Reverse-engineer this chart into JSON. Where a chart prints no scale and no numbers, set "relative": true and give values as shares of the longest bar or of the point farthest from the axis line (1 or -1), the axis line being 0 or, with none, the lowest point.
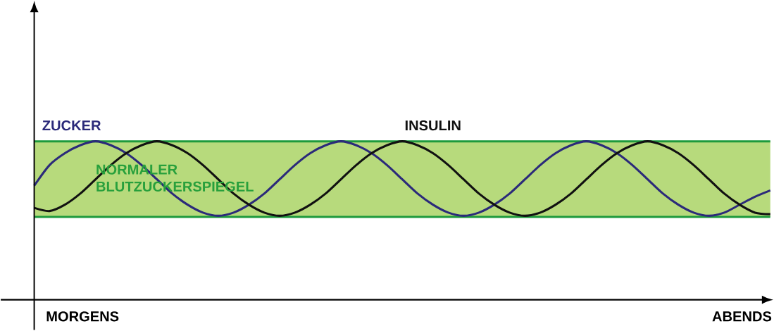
{
  "chart_data": {
    "type": "line",
    "relative": true,
    "categories": [
      null,
      null,
      null,
      null,
      null,
      null,
      null,
      null,
      null,
      null,
      null,
      null,
      null,
      null,
      null,
      null,
      null,
      null,
      null,
      null,
      null,
      null,
      null,
      null,
      null,
      null,
      null,
      null,
      null,
      null,
      null,
      null,
      null,
      null,
      null,
      null,
      null,
      null,
      null,
      null,
      null,
      null,
      null,
      null,
      null,
      null,
      null,
      null,
      null
    ],
    "series": [
      {
        "name": "ZUCKER",
        "color": "#2b2a7a",
        "values": [
          0.72,
          0.85,
          0.925,
          0.975,
          1,
          0.975,
          0.925,
          0.85,
          0.76,
          0.67,
          0.6,
          0.55,
          0.53,
          0.55,
          0.6,
          0.67,
          0.76,
          0.85,
          0.925,
          0.975,
          1,
          0.975,
          0.925,
          0.85,
          0.76,
          0.67,
          0.6,
          0.55,
          0.53,
          0.55,
          0.6,
          0.67,
          0.76,
          0.85,
          0.925,
          0.975,
          1,
          0.975,
          0.925,
          0.85,
          0.76,
          0.67,
          0.6,
          0.55,
          0.53,
          0.55,
          0.6,
          0.65,
          0.69
        ]
      },
      {
        "name": "INSULIN",
        "color": "#111111",
        "values": [
          0.58,
          0.56,
          0.6,
          0.67,
          0.76,
          0.85,
          0.925,
          0.975,
          1,
          0.975,
          0.925,
          0.85,
          0.76,
          0.67,
          0.6,
          0.55,
          0.53,
          0.55,
          0.6,
          0.67,
          0.76,
          0.85,
          0.925,
          0.975,
          1,
          0.975,
          0.925,
          0.85,
          0.76,
          0.67,
          0.6,
          0.55,
          0.53,
          0.55,
          0.6,
          0.67,
          0.76,
          0.85,
          0.925,
          0.975,
          1,
          0.975,
          0.925,
          0.85,
          0.76,
          0.67,
          0.6,
          0.55,
          0.54
        ]
      }
    ],
    "ref_lines": [
      {
        "axis": "y",
        "value": 0.523,
        "color": "#1e9a3c"
      },
      {
        "axis": "y",
        "value": 1,
        "color": "#1e9a3c"
      }
    ],
    "bands": [
      {
        "axis": "y",
        "from": 0.523,
        "to": 1,
        "label": "NORMALER BLUTZUCKERSPIEGEL",
        "color": "#b7da7c"
      }
    ],
    "annotations": [
      "MORGENS",
      "ABENDS"
    ]
  }
}
